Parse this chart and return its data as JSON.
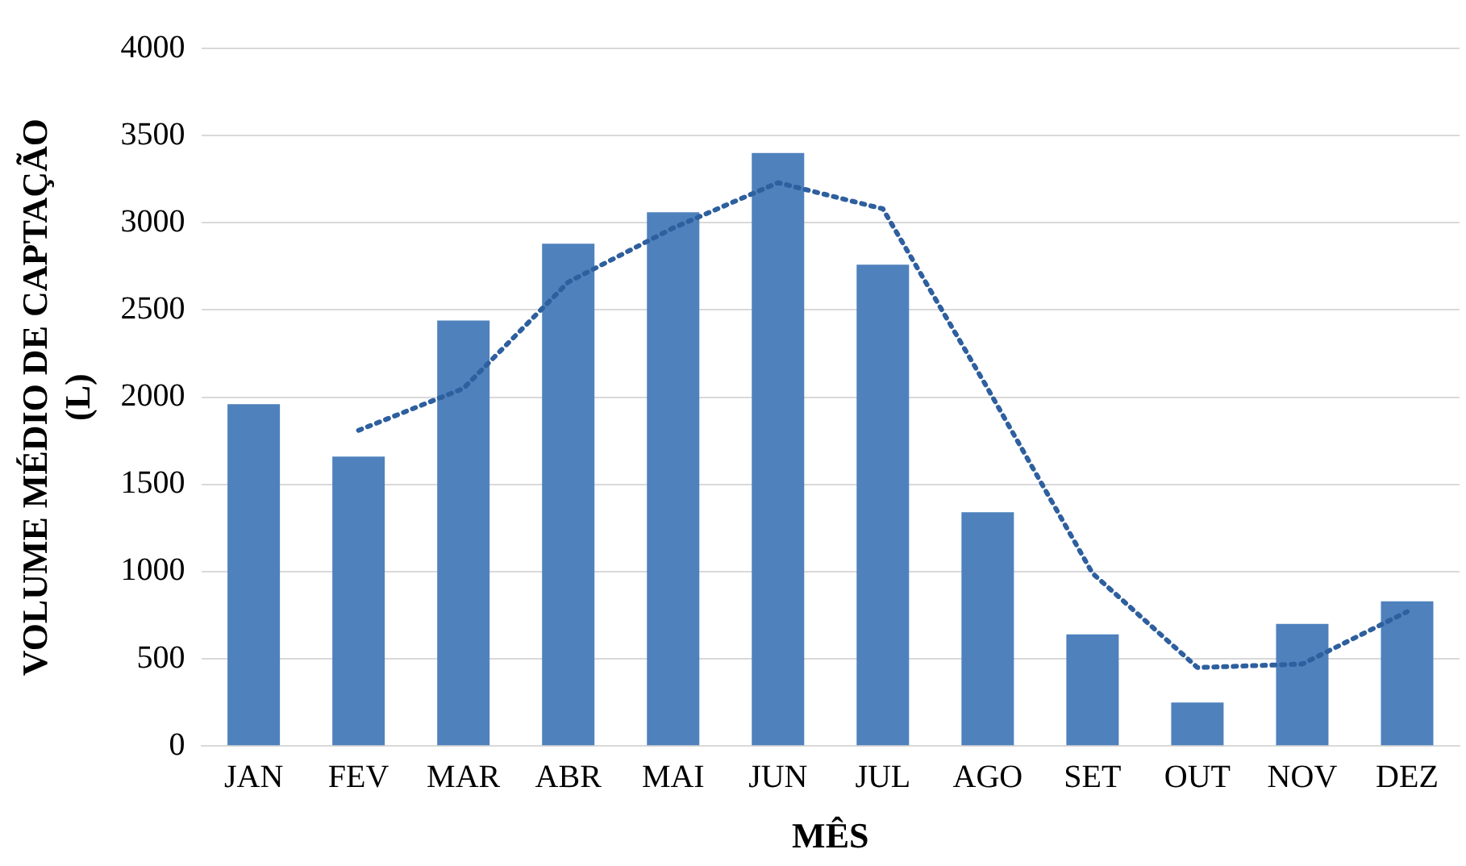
{
  "chart_data": {
    "type": "bar",
    "xlabel": "MÊS",
    "ylabel": "VOLUME MÉDIO DE CAPTAÇÃO (L)",
    "categories": [
      "JAN",
      "FEV",
      "MAR",
      "ABR",
      "MAI",
      "JUN",
      "JUL",
      "AGO",
      "SET",
      "OUT",
      "NOV",
      "DEZ"
    ],
    "series": [
      {
        "color": "#4f81bd",
        "values": [
          1960,
          1660,
          2440,
          2880,
          3060,
          3400,
          2760,
          1340,
          640,
          250,
          700,
          830
        ]
      },
      {
        "type": "line",
        "color": "#2e5f9e",
        "line_style": "dotted",
        "marker": "none",
        "values": [
          null,
          1810,
          2050,
          2660,
          2970,
          3230,
          3080,
          2050,
          990,
          450,
          470,
          770
        ]
      }
    ],
    "ylim": [
      0,
      4000
    ],
    "yticks": [
      0,
      500,
      1000,
      1500,
      2000,
      2500,
      3000,
      3500,
      4000
    ],
    "grid": "y",
    "legend": false
  }
}
